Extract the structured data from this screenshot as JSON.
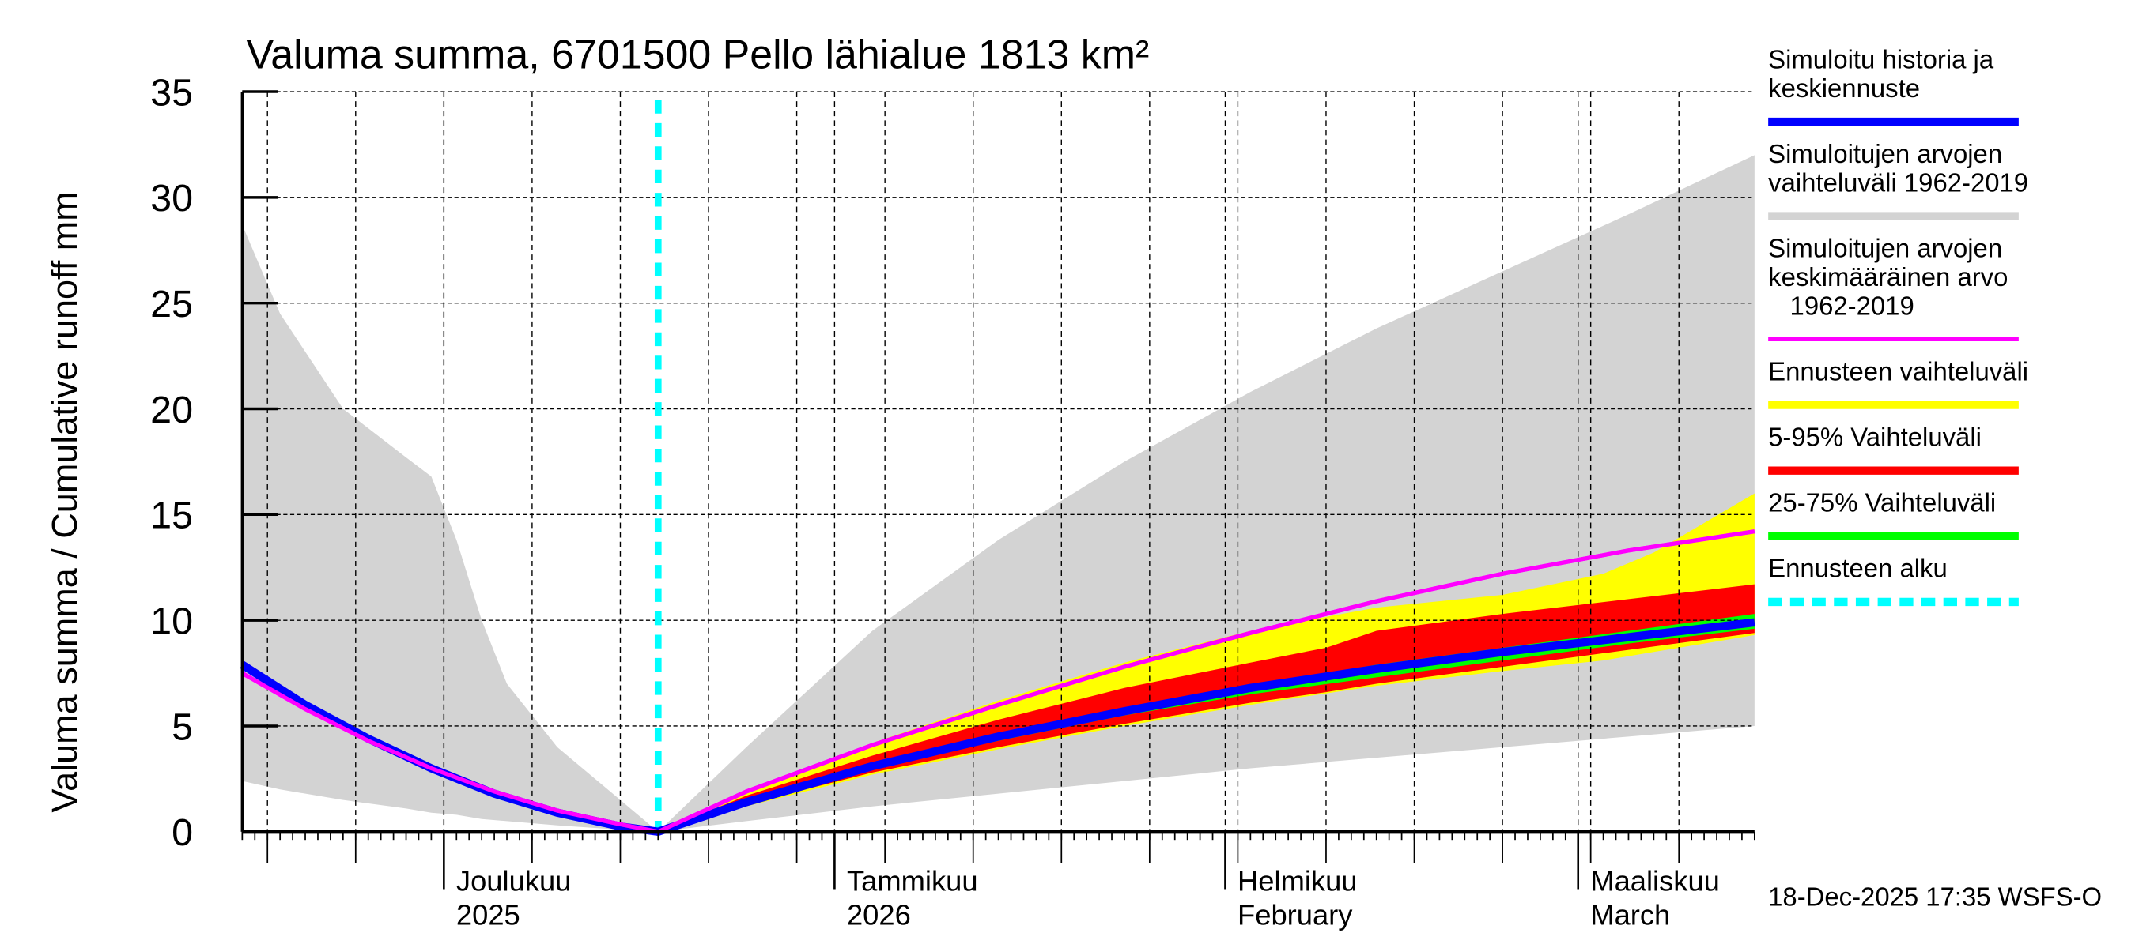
{
  "chart_data": {
    "type": "area",
    "title": "Valuma summa, 6701500 Pello lähialue 1813 km²",
    "ylabel": "Valuma summa / Cumulative runoff    mm",
    "xlabel": "",
    "ylim": [
      0,
      35
    ],
    "yticks": [
      0,
      5,
      10,
      15,
      20,
      25,
      30,
      35
    ],
    "grid": true,
    "x_unit": "days since 2025-11-15",
    "xlim": [
      0,
      120
    ],
    "forecast_start_day": 33,
    "month_ticks": [
      {
        "day": 16,
        "line1": "Joulukuu",
        "line2": "2025"
      },
      {
        "day": 47,
        "line1": "Tammikuu",
        "line2": "2026"
      },
      {
        "day": 78,
        "line1": "Helmikuu",
        "line2": "February"
      },
      {
        "day": 106,
        "line1": "Maaliskuu",
        "line2": "March"
      }
    ],
    "series": [
      {
        "name": "Simuloitujen arvojen vaihteluväli 1962-2019",
        "kind": "band",
        "color": "#d3d3d3",
        "x": [
          0,
          3,
          8,
          13,
          15,
          17,
          19,
          21,
          25,
          30,
          33,
          40,
          50,
          60,
          70,
          80,
          90,
          100,
          110,
          120
        ],
        "upper": [
          28.7,
          24.5,
          20.0,
          17.7,
          16.8,
          13.8,
          10.0,
          7.0,
          4.0,
          1.5,
          0,
          4.0,
          9.5,
          13.8,
          17.5,
          20.8,
          23.8,
          26.5,
          29.2,
          32.0
        ],
        "lower": [
          2.4,
          2.0,
          1.5,
          1.1,
          0.9,
          0.8,
          0.6,
          0.5,
          0.3,
          0.1,
          0,
          0.5,
          1.2,
          1.8,
          2.4,
          3.0,
          3.5,
          4.0,
          4.5,
          5.0
        ]
      },
      {
        "name": "Ennusteen vaihteluväli",
        "kind": "band",
        "color": "#ffff00",
        "x": [
          33,
          40,
          50,
          60,
          70,
          80,
          90,
          100,
          108,
          112,
          116,
          120
        ],
        "upper": [
          0,
          1.8,
          4.2,
          6.2,
          8.0,
          9.5,
          10.6,
          11.2,
          12.2,
          13.2,
          14.6,
          16.0
        ],
        "lower": [
          0,
          1.2,
          2.7,
          3.9,
          5.0,
          6.0,
          6.9,
          7.6,
          8.1,
          8.5,
          8.9,
          9.3
        ]
      },
      {
        "name": "5-95% Vaihteluväli",
        "kind": "band",
        "color": "#ff0000",
        "x": [
          33,
          40,
          50,
          60,
          70,
          80,
          86,
          90,
          100,
          110,
          120
        ],
        "upper": [
          0,
          1.7,
          3.6,
          5.3,
          6.8,
          8.0,
          8.7,
          9.5,
          10.3,
          11.0,
          11.7
        ],
        "lower": [
          0,
          1.3,
          2.8,
          4.0,
          5.1,
          6.1,
          6.6,
          7.0,
          7.8,
          8.6,
          9.4
        ]
      },
      {
        "name": "25-75% Vaihteluväli",
        "kind": "band",
        "color": "#00ff00",
        "x": [
          33,
          40,
          50,
          60,
          70,
          80,
          90,
          100,
          110,
          120
        ],
        "upper": [
          0,
          1.5,
          3.2,
          4.6,
          5.8,
          6.9,
          7.9,
          8.7,
          9.5,
          10.3
        ],
        "lower": [
          0,
          1.4,
          3.0,
          4.3,
          5.5,
          6.5,
          7.3,
          8.1,
          8.9,
          9.6
        ]
      },
      {
        "name": "Simuloitujen arvojen keskimääräinen arvo 1962-2019",
        "kind": "line",
        "color": "#ff00ff",
        "x": [
          0,
          5,
          10,
          15,
          20,
          25,
          30,
          33,
          40,
          50,
          60,
          70,
          80,
          90,
          100,
          110,
          120
        ],
        "y": [
          7.5,
          5.8,
          4.3,
          3.0,
          1.9,
          1.0,
          0.35,
          0,
          1.9,
          4.1,
          6.0,
          7.8,
          9.4,
          10.9,
          12.2,
          13.3,
          14.2
        ]
      },
      {
        "name": "Simuloitu historia ja keskiennuste",
        "kind": "line",
        "color": "#0000ff",
        "x": [
          0,
          5,
          10,
          15,
          20,
          25,
          30,
          33,
          40,
          50,
          60,
          70,
          80,
          90,
          100,
          110,
          120
        ],
        "y": [
          7.9,
          6.0,
          4.4,
          3.0,
          1.8,
          0.9,
          0.25,
          0,
          1.4,
          3.1,
          4.5,
          5.7,
          6.8,
          7.7,
          8.5,
          9.2,
          9.9
        ]
      }
    ],
    "legend_position": "right",
    "timestamp": "18-Dec-2025 17:35 WSFS-O"
  },
  "legend": [
    {
      "lines": [
        "Simuloitu historia ja",
        "keskiennuste"
      ],
      "color": "#0000ff",
      "style": "solid"
    },
    {
      "lines": [
        "Simuloitujen arvojen",
        "vaihteluväli 1962-2019"
      ],
      "color": "#d3d3d3",
      "style": "solid"
    },
    {
      "lines": [
        "Simuloitujen arvojen",
        "keskimääräinen arvo",
        "   1962-2019"
      ],
      "color": "#ff00ff",
      "style": "thin"
    },
    {
      "lines": [
        "Ennusteen vaihteluväli"
      ],
      "color": "#ffff00",
      "style": "solid"
    },
    {
      "lines": [
        "5-95% Vaihteluväli"
      ],
      "color": "#ff0000",
      "style": "solid"
    },
    {
      "lines": [
        "25-75% Vaihteluväli"
      ],
      "color": "#00ff00",
      "style": "solid"
    },
    {
      "lines": [
        "Ennusteen alku"
      ],
      "color": "#00ffff",
      "style": "dashed"
    }
  ]
}
